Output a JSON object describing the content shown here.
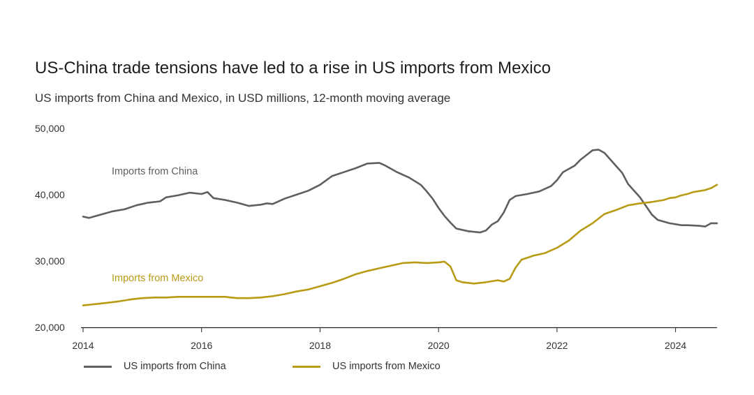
{
  "title": "US-China trade tensions have led to a rise in US imports from Mexico",
  "subtitle": "US imports from China and Mexico, in USD millions, 12-month moving average",
  "legend": [
    {
      "label": "US imports from China",
      "color": "#5f5f5f"
    },
    {
      "label": "US imports from Mexico",
      "color": "#b89b14"
    }
  ],
  "annotations": {
    "china": "Imports from China",
    "mexico": "Imports from Mexico"
  },
  "chart_data": {
    "type": "line",
    "xlim": [
      2014,
      2024.7
    ],
    "ylim": [
      20000,
      50000
    ],
    "x_ticks": [
      2014,
      2016,
      2018,
      2020,
      2022,
      2024
    ],
    "y_ticks": [
      20000,
      30000,
      40000,
      50000
    ],
    "y_tick_labels": [
      "20,000",
      "30,000",
      "40,000",
      "50,000"
    ],
    "series": [
      {
        "name": "US imports from China",
        "color": "#5f5f5f",
        "points": [
          [
            2014.0,
            36700
          ],
          [
            2014.1,
            36500
          ],
          [
            2014.3,
            37000
          ],
          [
            2014.5,
            37500
          ],
          [
            2014.7,
            37800
          ],
          [
            2014.9,
            38400
          ],
          [
            2015.1,
            38800
          ],
          [
            2015.3,
            39000
          ],
          [
            2015.4,
            39600
          ],
          [
            2015.6,
            39900
          ],
          [
            2015.8,
            40300
          ],
          [
            2016.0,
            40100
          ],
          [
            2016.1,
            40400
          ],
          [
            2016.2,
            39500
          ],
          [
            2016.4,
            39200
          ],
          [
            2016.6,
            38800
          ],
          [
            2016.8,
            38300
          ],
          [
            2017.0,
            38500
          ],
          [
            2017.1,
            38700
          ],
          [
            2017.2,
            38600
          ],
          [
            2017.4,
            39400
          ],
          [
            2017.6,
            40000
          ],
          [
            2017.8,
            40600
          ],
          [
            2018.0,
            41500
          ],
          [
            2018.2,
            42800
          ],
          [
            2018.4,
            43400
          ],
          [
            2018.6,
            44000
          ],
          [
            2018.8,
            44700
          ],
          [
            2019.0,
            44800
          ],
          [
            2019.1,
            44400
          ],
          [
            2019.3,
            43400
          ],
          [
            2019.5,
            42600
          ],
          [
            2019.7,
            41500
          ],
          [
            2019.8,
            40500
          ],
          [
            2019.9,
            39400
          ],
          [
            2020.0,
            38000
          ],
          [
            2020.1,
            36800
          ],
          [
            2020.2,
            35800
          ],
          [
            2020.3,
            34900
          ],
          [
            2020.5,
            34500
          ],
          [
            2020.7,
            34300
          ],
          [
            2020.8,
            34600
          ],
          [
            2020.9,
            35500
          ],
          [
            2021.0,
            36000
          ],
          [
            2021.1,
            37300
          ],
          [
            2021.2,
            39200
          ],
          [
            2021.3,
            39800
          ],
          [
            2021.5,
            40100
          ],
          [
            2021.7,
            40500
          ],
          [
            2021.9,
            41300
          ],
          [
            2022.0,
            42200
          ],
          [
            2022.1,
            43400
          ],
          [
            2022.3,
            44400
          ],
          [
            2022.4,
            45300
          ],
          [
            2022.5,
            46000
          ],
          [
            2022.6,
            46700
          ],
          [
            2022.7,
            46800
          ],
          [
            2022.8,
            46300
          ],
          [
            2022.9,
            45300
          ],
          [
            2023.0,
            44300
          ],
          [
            2023.1,
            43300
          ],
          [
            2023.2,
            41600
          ],
          [
            2023.3,
            40600
          ],
          [
            2023.4,
            39600
          ],
          [
            2023.5,
            38300
          ],
          [
            2023.6,
            37000
          ],
          [
            2023.7,
            36200
          ],
          [
            2023.9,
            35700
          ],
          [
            2024.1,
            35400
          ],
          [
            2024.2,
            35400
          ],
          [
            2024.4,
            35300
          ],
          [
            2024.5,
            35200
          ],
          [
            2024.6,
            35700
          ],
          [
            2024.7,
            35700
          ]
        ]
      },
      {
        "name": "US imports from Mexico",
        "color": "#b89b14",
        "points": [
          [
            2014.0,
            23300
          ],
          [
            2014.2,
            23500
          ],
          [
            2014.4,
            23700
          ],
          [
            2014.6,
            23900
          ],
          [
            2014.8,
            24200
          ],
          [
            2015.0,
            24400
          ],
          [
            2015.2,
            24500
          ],
          [
            2015.4,
            24500
          ],
          [
            2015.6,
            24600
          ],
          [
            2015.8,
            24600
          ],
          [
            2016.0,
            24600
          ],
          [
            2016.2,
            24600
          ],
          [
            2016.4,
            24600
          ],
          [
            2016.5,
            24500
          ],
          [
            2016.6,
            24400
          ],
          [
            2016.8,
            24400
          ],
          [
            2017.0,
            24500
          ],
          [
            2017.2,
            24700
          ],
          [
            2017.4,
            25000
          ],
          [
            2017.6,
            25400
          ],
          [
            2017.8,
            25700
          ],
          [
            2018.0,
            26200
          ],
          [
            2018.2,
            26700
          ],
          [
            2018.4,
            27300
          ],
          [
            2018.6,
            28000
          ],
          [
            2018.8,
            28500
          ],
          [
            2019.0,
            28900
          ],
          [
            2019.2,
            29300
          ],
          [
            2019.4,
            29700
          ],
          [
            2019.6,
            29800
          ],
          [
            2019.8,
            29700
          ],
          [
            2020.0,
            29800
          ],
          [
            2020.1,
            29900
          ],
          [
            2020.2,
            29200
          ],
          [
            2020.3,
            27100
          ],
          [
            2020.4,
            26800
          ],
          [
            2020.6,
            26600
          ],
          [
            2020.8,
            26800
          ],
          [
            2021.0,
            27100
          ],
          [
            2021.1,
            26900
          ],
          [
            2021.2,
            27300
          ],
          [
            2021.3,
            29000
          ],
          [
            2021.4,
            30200
          ],
          [
            2021.6,
            30800
          ],
          [
            2021.8,
            31200
          ],
          [
            2022.0,
            32000
          ],
          [
            2022.2,
            33100
          ],
          [
            2022.4,
            34600
          ],
          [
            2022.6,
            35700
          ],
          [
            2022.8,
            37100
          ],
          [
            2023.0,
            37700
          ],
          [
            2023.2,
            38400
          ],
          [
            2023.4,
            38700
          ],
          [
            2023.6,
            38900
          ],
          [
            2023.8,
            39200
          ],
          [
            2023.9,
            39500
          ],
          [
            2024.0,
            39600
          ],
          [
            2024.1,
            39900
          ],
          [
            2024.2,
            40100
          ],
          [
            2024.3,
            40400
          ],
          [
            2024.5,
            40700
          ],
          [
            2024.6,
            41000
          ],
          [
            2024.7,
            41500
          ]
        ]
      }
    ]
  }
}
